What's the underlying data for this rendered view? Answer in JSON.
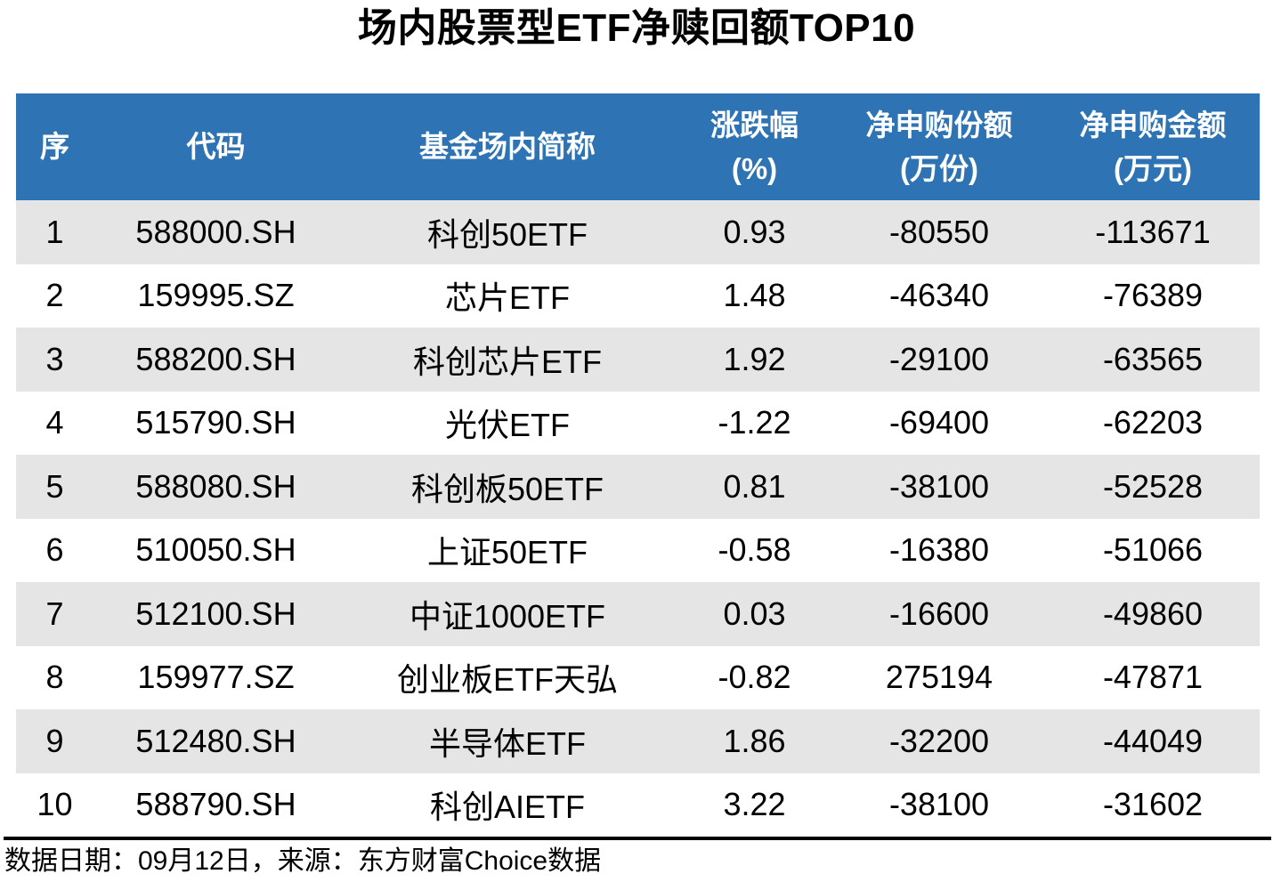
{
  "title": "场内股票型ETF净赎回额TOP10",
  "colors": {
    "header_bg": "#2E74B5",
    "header_text": "#FFFFFF",
    "row_alt_bg": "#E5E5E5",
    "row_bg": "#FFFFFF",
    "text": "#000000",
    "rule": "#000000"
  },
  "table_header": [
    [
      "序",
      ""
    ],
    [
      "代码",
      ""
    ],
    [
      "基金场内简称",
      ""
    ],
    [
      "涨跌幅",
      "(%)"
    ],
    [
      "净申购份额",
      "(万份)"
    ],
    [
      "净申购金额",
      "(万元)"
    ]
  ],
  "col_keys": [
    "rank",
    "code",
    "name",
    "change-pct",
    "net-subscription-shares",
    "net-subscription-amount"
  ],
  "chart_data": {
    "type": "table",
    "title": "场内股票型ETF净赎回额TOP10",
    "columns": [
      "序",
      "代码",
      "基金场内简称",
      "涨跌幅(%)",
      "净申购份额(万份)",
      "净申购金额(万元)"
    ],
    "rows": [
      [
        "1",
        "588000.SH",
        "科创50ETF",
        "0.93",
        "-80550",
        "-113671"
      ],
      [
        "2",
        "159995.SZ",
        "芯片ETF",
        "1.48",
        "-46340",
        "-76389"
      ],
      [
        "3",
        "588200.SH",
        "科创芯片ETF",
        "1.92",
        "-29100",
        "-63565"
      ],
      [
        "4",
        "515790.SH",
        "光伏ETF",
        "-1.22",
        "-69400",
        "-62203"
      ],
      [
        "5",
        "588080.SH",
        "科创板50ETF",
        "0.81",
        "-38100",
        "-52528"
      ],
      [
        "6",
        "510050.SH",
        "上证50ETF",
        "-0.58",
        "-16380",
        "-51066"
      ],
      [
        "7",
        "512100.SH",
        "中证1000ETF",
        "0.03",
        "-16600",
        "-49860"
      ],
      [
        "8",
        "159977.SZ",
        "创业板ETF天弘",
        "-0.82",
        "275194",
        "-47871"
      ],
      [
        "9",
        "512480.SH",
        "半导体ETF",
        "1.86",
        "-32200",
        "-44049"
      ],
      [
        "10",
        "588790.SH",
        "科创AIETF",
        "3.22",
        "-38100",
        "-31602"
      ]
    ],
    "source_note": "数据日期：09月12日，来源：东方财富Choice数据"
  },
  "footer": {
    "text": "数据日期：09月12日，来源：东方财富Choice数据"
  }
}
